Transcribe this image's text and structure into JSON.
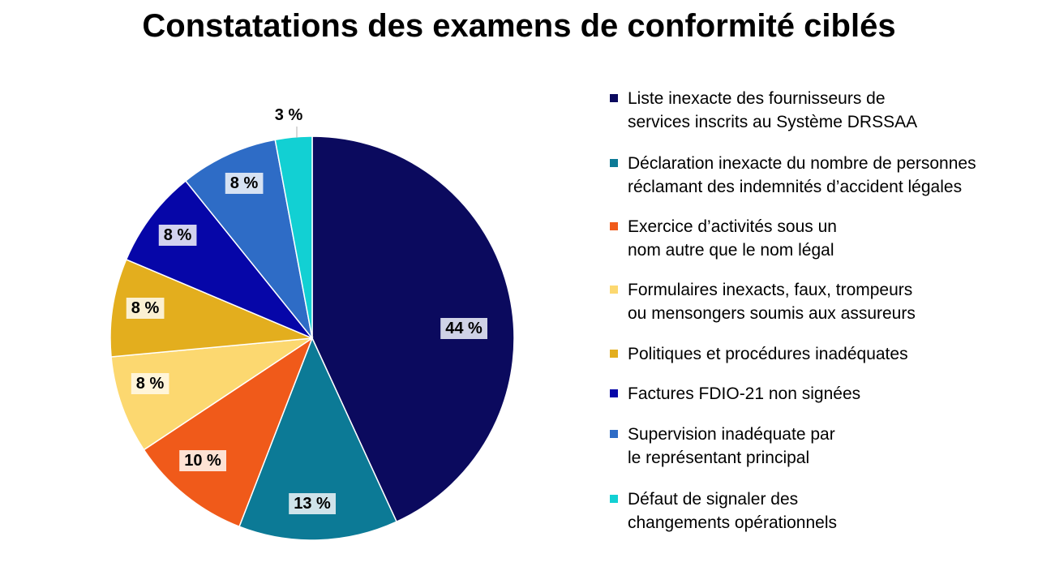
{
  "chart_data": {
    "type": "pie",
    "title": "Constatations des examens de conformité ciblés",
    "slices": [
      {
        "label": "Liste inexacte des fournisseurs de\nservices inscrits au Système DRSSAA",
        "value": 44,
        "display": "44 %",
        "color": "#0b0a5e",
        "label_bg": "#cfd2e6"
      },
      {
        "label": "Déclaration inexacte du nombre de personnes\nréclamant des indemnités d’accident légales",
        "value": 13,
        "display": "13 %",
        "color": "#0c7a96",
        "label_bg": "#cfe3ea"
      },
      {
        "label": "Exercice d’activités sous un\nnom autre que le nom légal",
        "value": 10,
        "display": "10 %",
        "color": "#f05a1a",
        "label_bg": "#fde2d4"
      },
      {
        "label": "Formulaires inexacts, faux, trompeurs\nou mensongers soumis aux assureurs",
        "value": 8,
        "display": "8 %",
        "color": "#fcd870",
        "label_bg": "#fff5d9"
      },
      {
        "label": "Politiques et procédures inadéquates",
        "value": 8,
        "display": "8 %",
        "color": "#e3ae1e",
        "label_bg": "#fbf0d2"
      },
      {
        "label": "Factures FDIO-21 non signées",
        "value": 8,
        "display": "8 %",
        "color": "#0606a8",
        "label_bg": "#d2d2ef"
      },
      {
        "label": "Supervision inadéquate par\nle représentant principal",
        "value": 8,
        "display": "8 %",
        "color": "#2e6cc6",
        "label_bg": "#d6e2f3"
      },
      {
        "label": "Défaut de signaler des\nchangements opérationnels",
        "value": 3,
        "display": "3 %",
        "color": "#12d0d3",
        "label_bg": "#ffffff"
      }
    ],
    "legend_position": "right"
  }
}
